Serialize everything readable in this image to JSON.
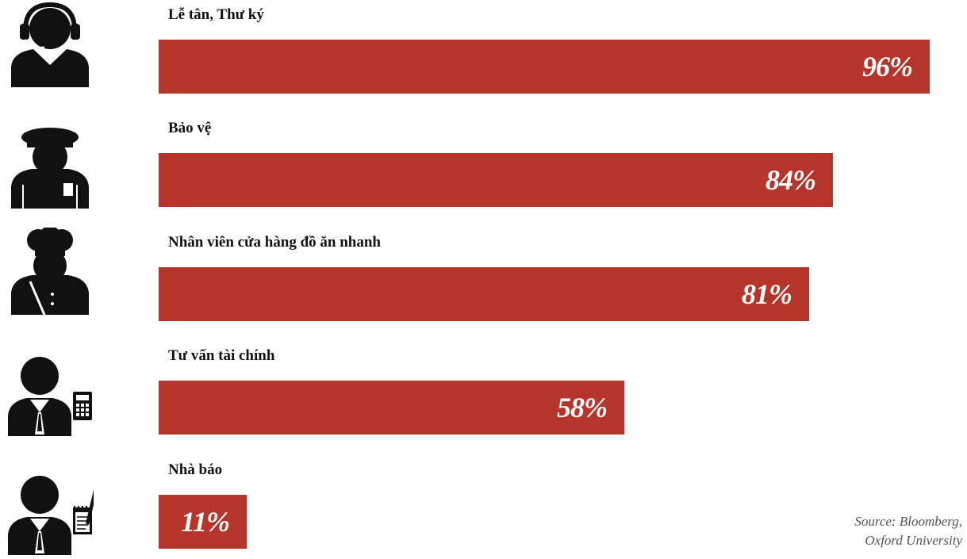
{
  "chart_data": {
    "type": "bar",
    "orientation": "horizontal",
    "categories": [
      "Lễ tân, Thư ký",
      "Bảo vệ",
      "Nhân viên cửa hàng đồ ăn nhanh",
      "Tư vấn tài chính",
      "Nhà báo"
    ],
    "values": [
      96,
      84,
      81,
      58,
      11
    ],
    "value_labels": [
      "96%",
      "84%",
      "81%",
      "58%",
      "11%"
    ],
    "icons": [
      "headset-receptionist-icon",
      "security-guard-icon",
      "chef-icon",
      "financial-advisor-calculator-icon",
      "journalist-notepad-icon"
    ],
    "xlim": [
      0,
      100
    ],
    "bar_color": "#b5352a",
    "value_label_color": "#ffffff",
    "grid": false
  },
  "source": {
    "line1": "Source: Bloomberg,",
    "line2": "Oxford University"
  }
}
